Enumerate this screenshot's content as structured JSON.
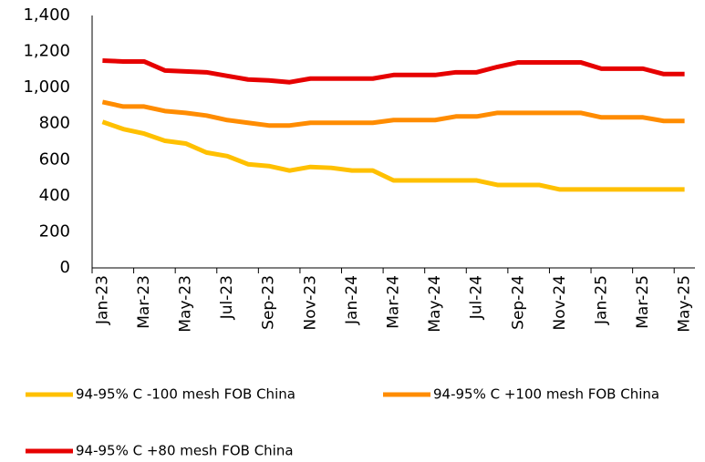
{
  "chart_data": {
    "type": "line",
    "categories": [
      "Jan-23",
      null,
      "Mar-23",
      null,
      "May-23",
      null,
      "Jul-23",
      null,
      "Sep-23",
      null,
      "Nov-23",
      null,
      "Jan-24",
      null,
      "Mar-24",
      null,
      "May-24",
      null,
      "Jul-24",
      null,
      "Sep-24",
      null,
      "Nov-24",
      null,
      "Jan-25",
      null,
      "Mar-25",
      null,
      "May-25"
    ],
    "series": [
      {
        "name": "94-95% C -100 mesh FOB China",
        "color": "#ffc000",
        "values": [
          810,
          770,
          745,
          705,
          690,
          640,
          620,
          575,
          565,
          540,
          560,
          555,
          540,
          540,
          485,
          485,
          485,
          485,
          485,
          460,
          460,
          460,
          435,
          435,
          435,
          435,
          435,
          435,
          435
        ]
      },
      {
        "name": "94-95% C +100 mesh FOB China",
        "color": "#ff8c00",
        "values": [
          920,
          895,
          895,
          870,
          860,
          845,
          820,
          805,
          790,
          790,
          805,
          805,
          805,
          805,
          820,
          820,
          820,
          840,
          840,
          860,
          860,
          860,
          860,
          860,
          835,
          835,
          835,
          815,
          815
        ]
      },
      {
        "name": "94-95% C +80 mesh FOB China",
        "color": "#e60000",
        "values": [
          1150,
          1145,
          1145,
          1095,
          1090,
          1085,
          1065,
          1045,
          1040,
          1030,
          1050,
          1050,
          1050,
          1050,
          1070,
          1070,
          1070,
          1085,
          1085,
          1115,
          1140,
          1140,
          1140,
          1140,
          1105,
          1105,
          1105,
          1075,
          1075
        ]
      }
    ],
    "ylim": [
      0,
      1400
    ],
    "yticks": [
      0,
      200,
      400,
      600,
      800,
      {
        "value": 1000,
        "label": "1,000"
      },
      {
        "value": 1200,
        "label": "1,200"
      },
      {
        "value": 1400,
        "label": "1,400"
      }
    ]
  }
}
